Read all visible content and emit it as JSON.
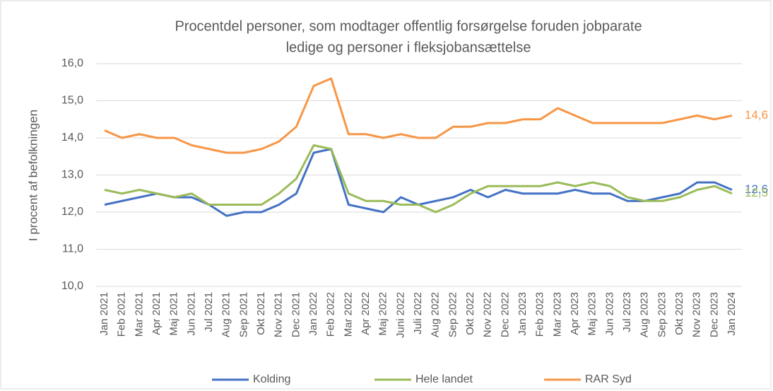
{
  "chart_data": {
    "type": "line",
    "title": [
      "Procentdel personer, som modtager offentlig forsørgelse foruden jobparate",
      "ledige og personer i fleksjobansættelse"
    ],
    "ylabel": "I procent af befolkningen",
    "categories": [
      "Jan 2021",
      "Feb 2021",
      "Mar 2021",
      "Apr 2021",
      "Maj 2021",
      "Jun 2021",
      "Jul 2021",
      "Aug 2021",
      "Sep 2021",
      "Okt 2021",
      "Nov 2021",
      "Dec 2021",
      "Jan 2022",
      "Feb 2022",
      "Mar 2022",
      "Apr 2022",
      "Maj 2022",
      "Juni 2022",
      "Juli 2022",
      "Aug 2022",
      "Sep 2022",
      "Okt 2022",
      "Nov 2022",
      "Dec 2022",
      "Jan 2023",
      "Feb 2023",
      "Mar 2023",
      "Apr 2023",
      "Maj 2023",
      "Jun 2023",
      "Jul 2023",
      "Aug 2023",
      "Sep 2023",
      "Okt 2023",
      "Nov 2023",
      "Dec 2023",
      "Jan 2024"
    ],
    "series": [
      {
        "name": "Kolding",
        "color": "#4472c4",
        "values": [
          12.2,
          12.3,
          12.4,
          12.5,
          12.4,
          12.4,
          12.2,
          11.9,
          12.0,
          12.0,
          12.2,
          12.5,
          13.6,
          13.7,
          12.2,
          12.1,
          12.0,
          12.4,
          12.2,
          12.3,
          12.4,
          12.6,
          12.4,
          12.6,
          12.5,
          12.5,
          12.5,
          12.6,
          12.5,
          12.5,
          12.3,
          12.3,
          12.4,
          12.5,
          12.8,
          12.8,
          12.6
        ],
        "value_labels": [
          null,
          null,
          null,
          null,
          null,
          null,
          null,
          null,
          null,
          null,
          null,
          null,
          null,
          null,
          null,
          null,
          null,
          null,
          null,
          null,
          null,
          null,
          null,
          null,
          null,
          null,
          null,
          null,
          null,
          null,
          null,
          null,
          null,
          null,
          null,
          null,
          "12,6"
        ]
      },
      {
        "name": "Hele landet",
        "color": "#9bbb59",
        "values": [
          12.6,
          12.5,
          12.6,
          12.5,
          12.4,
          12.5,
          12.2,
          12.2,
          12.2,
          12.2,
          12.5,
          12.9,
          13.8,
          13.7,
          12.5,
          12.3,
          12.3,
          12.2,
          12.2,
          12.0,
          12.2,
          12.5,
          12.7,
          12.7,
          12.7,
          12.7,
          12.8,
          12.7,
          12.8,
          12.7,
          12.4,
          12.3,
          12.3,
          12.4,
          12.6,
          12.7,
          12.5
        ],
        "value_labels": [
          null,
          null,
          null,
          null,
          null,
          null,
          null,
          null,
          null,
          null,
          null,
          null,
          null,
          null,
          null,
          null,
          null,
          null,
          null,
          null,
          null,
          null,
          null,
          null,
          null,
          null,
          null,
          null,
          null,
          null,
          null,
          null,
          null,
          null,
          null,
          null,
          "12,5"
        ]
      },
      {
        "name": "RAR Syd",
        "color": "#f79646",
        "values": [
          14.2,
          14.0,
          14.1,
          14.0,
          14.0,
          13.8,
          13.7,
          13.6,
          13.6,
          13.7,
          13.9,
          14.3,
          15.4,
          15.6,
          14.1,
          14.1,
          14.0,
          14.1,
          14.0,
          14.0,
          14.3,
          14.3,
          14.4,
          14.4,
          14.5,
          14.5,
          14.8,
          14.6,
          14.4,
          14.4,
          14.4,
          14.4,
          14.4,
          14.5,
          14.6,
          14.5,
          14.6
        ],
        "value_labels": [
          null,
          null,
          null,
          null,
          null,
          null,
          null,
          null,
          null,
          null,
          null,
          null,
          null,
          null,
          null,
          null,
          null,
          null,
          null,
          null,
          null,
          null,
          null,
          null,
          null,
          null,
          null,
          null,
          null,
          null,
          null,
          null,
          null,
          null,
          null,
          null,
          "14,6"
        ]
      }
    ],
    "ylim": [
      10,
      16
    ],
    "yticks": [
      {
        "value": 10,
        "label": "10,0"
      },
      {
        "value": 11,
        "label": "11,0"
      },
      {
        "value": 12,
        "label": "12,0"
      },
      {
        "value": 13,
        "label": "13,0"
      },
      {
        "value": 14,
        "label": "14,0"
      },
      {
        "value": 15,
        "label": "15,0"
      },
      {
        "value": 16,
        "label": "16,0"
      }
    ],
    "grid": true,
    "legend": "bottom"
  }
}
